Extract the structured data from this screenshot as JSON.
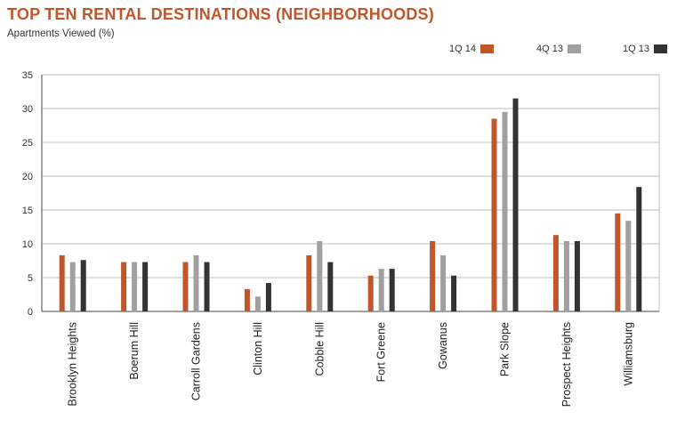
{
  "header": {
    "title": "TOP TEN RENTAL DESTINATIONS (NEIGHBORHOODS)",
    "subtitle": "Apartments Viewed (%)"
  },
  "colors": {
    "title": "#c0562a",
    "axis": "#444444",
    "grid": "#bfbfbf"
  },
  "chart_data": {
    "type": "bar",
    "categories": [
      "Brooklyn Heights",
      "Boerum Hill",
      "Carroll Gardens",
      "Clinton Hill",
      "Cobble Hill",
      "Fort Greene",
      "Gowanus",
      "Park Slope",
      "Prospect Heights",
      "Williamsburg"
    ],
    "series": [
      {
        "name": "1Q 14",
        "color": "#c0562a",
        "values": [
          8.3,
          7.3,
          7.3,
          3.3,
          8.3,
          5.3,
          10.4,
          28.5,
          11.3,
          14.5
        ]
      },
      {
        "name": "4Q 13",
        "color": "#a0a0a0",
        "values": [
          7.3,
          7.3,
          8.3,
          2.2,
          10.4,
          6.3,
          8.3,
          29.5,
          10.4,
          13.4
        ]
      },
      {
        "name": "1Q 13",
        "color": "#333333",
        "values": [
          7.6,
          7.3,
          7.3,
          4.2,
          7.3,
          6.3,
          5.3,
          31.5,
          10.4,
          18.4
        ]
      }
    ],
    "yticks": [
      0,
      5,
      10,
      15,
      20,
      25,
      30,
      35
    ],
    "ylim": [
      0,
      35
    ],
    "grid": true,
    "legend_position": "top-right",
    "xlabel": "",
    "ylabel": "Apartments Viewed (%)"
  }
}
